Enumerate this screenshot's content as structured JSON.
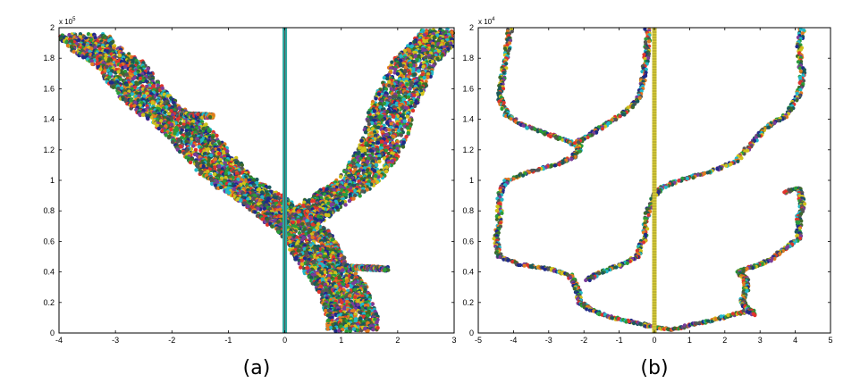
{
  "chart_data": [
    {
      "type": "scatter",
      "caption": "(a)",
      "xlim": [
        -4,
        3
      ],
      "ylim": [
        0,
        2
      ],
      "y_multiplier_label": "x 10",
      "y_multiplier_exp": "5",
      "xticks": [
        "-4",
        "-3",
        "-2",
        "-1",
        "0",
        "1",
        "2",
        "3"
      ],
      "yticks": [
        "0",
        "0.2",
        "0.4",
        "0.6",
        "0.8",
        "1",
        "1.2",
        "1.4",
        "1.6",
        "1.8",
        "2"
      ],
      "grid": false,
      "vertical_line_x": 0,
      "branches": [
        {
          "points": [
            [
              -3.6,
              1.95
            ],
            [
              -3.3,
              1.85
            ],
            [
              -2.9,
              1.75
            ],
            [
              -2.6,
              1.6
            ],
            [
              -2.3,
              1.48
            ],
            [
              -1.9,
              1.38
            ],
            [
              -1.6,
              1.27
            ],
            [
              -1.3,
              1.14
            ],
            [
              -1.0,
              1.02
            ],
            [
              -0.6,
              0.92
            ],
            [
              -0.3,
              0.85
            ],
            [
              0.0,
              0.76
            ],
            [
              0.3,
              0.67
            ],
            [
              0.5,
              0.58
            ],
            [
              0.6,
              0.5
            ],
            [
              0.8,
              0.4
            ],
            [
              1.0,
              0.3
            ],
            [
              1.1,
              0.2
            ],
            [
              1.2,
              0.1
            ],
            [
              1.2,
              0.02
            ]
          ],
          "width": 0.45
        },
        {
          "points": [
            [
              2.8,
              1.98
            ],
            [
              2.6,
              1.88
            ],
            [
              2.3,
              1.78
            ],
            [
              2.1,
              1.62
            ],
            [
              1.9,
              1.48
            ],
            [
              1.8,
              1.3
            ],
            [
              1.6,
              1.15
            ],
            [
              1.3,
              1.0
            ],
            [
              0.9,
              0.9
            ],
            [
              0.5,
              0.8
            ],
            [
              0.2,
              0.72
            ]
          ],
          "width": 0.4
        }
      ],
      "spurs": [
        {
          "points": [
            [
              -1.8,
              1.43
            ],
            [
              -1.3,
              1.42
            ]
          ],
          "width": 0.06
        },
        {
          "points": [
            [
              1.2,
              0.43
            ],
            [
              1.8,
              0.42
            ]
          ],
          "width": 0.06
        }
      ]
    },
    {
      "type": "scatter",
      "caption": "(b)",
      "xlim": [
        -5,
        5
      ],
      "ylim": [
        0,
        2
      ],
      "y_multiplier_label": "x 10",
      "y_multiplier_exp": "4",
      "xticks": [
        "-5",
        "-4",
        "-3",
        "-2",
        "-1",
        "0",
        "1",
        "2",
        "3",
        "4",
        "5"
      ],
      "yticks": [
        "0",
        "0.2",
        "0.4",
        "0.6",
        "0.8",
        "1",
        "1.2",
        "1.4",
        "1.6",
        "1.8",
        "2"
      ],
      "grid": false,
      "vertical_line_x": 0,
      "curves": [
        [
          [
            -4.1,
            2.0
          ],
          [
            -4.2,
            1.82
          ],
          [
            -4.3,
            1.68
          ],
          [
            -4.4,
            1.55
          ],
          [
            -4.2,
            1.43
          ],
          [
            -3.7,
            1.36
          ],
          [
            -3.0,
            1.3
          ],
          [
            -2.5,
            1.26
          ],
          [
            -2.1,
            1.22
          ],
          [
            -2.3,
            1.15
          ],
          [
            -2.8,
            1.1
          ],
          [
            -3.5,
            1.06
          ],
          [
            -4.2,
            1.0
          ],
          [
            -4.4,
            0.9
          ],
          [
            -4.4,
            0.75
          ],
          [
            -4.5,
            0.6
          ],
          [
            -4.4,
            0.5
          ],
          [
            -3.8,
            0.45
          ],
          [
            -3.0,
            0.42
          ],
          [
            -2.4,
            0.38
          ],
          [
            -2.2,
            0.3
          ],
          [
            -2.1,
            0.2
          ],
          [
            -1.8,
            0.15
          ],
          [
            -1.2,
            0.1
          ],
          [
            -0.6,
            0.07
          ],
          [
            0.0,
            0.04
          ],
          [
            0.5,
            0.02
          ],
          [
            1.0,
            0.05
          ],
          [
            1.6,
            0.08
          ],
          [
            2.2,
            0.12
          ],
          [
            2.8,
            0.15
          ]
        ],
        [
          [
            -0.2,
            2.0
          ],
          [
            -0.2,
            1.85
          ],
          [
            -0.3,
            1.7
          ],
          [
            -0.4,
            1.55
          ],
          [
            -0.8,
            1.45
          ],
          [
            -1.3,
            1.38
          ],
          [
            -1.8,
            1.3
          ],
          [
            -2.2,
            1.25
          ]
        ],
        [
          [
            4.2,
            2.0
          ],
          [
            4.1,
            1.85
          ],
          [
            4.2,
            1.7
          ],
          [
            4.1,
            1.55
          ],
          [
            3.7,
            1.42
          ],
          [
            3.2,
            1.35
          ],
          [
            2.8,
            1.25
          ],
          [
            2.3,
            1.12
          ],
          [
            1.5,
            1.05
          ],
          [
            0.7,
            1.0
          ],
          [
            0.2,
            0.95
          ],
          [
            0.0,
            0.9
          ],
          [
            -0.2,
            0.78
          ],
          [
            -0.3,
            0.62
          ],
          [
            -0.5,
            0.5
          ],
          [
            -0.9,
            0.45
          ],
          [
            -1.5,
            0.4
          ],
          [
            -1.9,
            0.35
          ]
        ],
        [
          [
            3.7,
            0.92
          ],
          [
            4.1,
            0.95
          ],
          [
            4.2,
            0.85
          ],
          [
            4.1,
            0.75
          ],
          [
            4.1,
            0.62
          ],
          [
            3.7,
            0.55
          ],
          [
            3.3,
            0.48
          ],
          [
            3.0,
            0.45
          ],
          [
            2.6,
            0.42
          ],
          [
            2.4,
            0.4
          ]
        ],
        [
          [
            2.4,
            0.4
          ],
          [
            2.6,
            0.35
          ],
          [
            2.6,
            0.28
          ],
          [
            2.5,
            0.2
          ],
          [
            2.7,
            0.15
          ],
          [
            2.8,
            0.12
          ]
        ]
      ]
    }
  ],
  "colors": [
    "#1f2a8a",
    "#e0342c",
    "#2a9d3a",
    "#20b8c8",
    "#7a3c9a",
    "#cfc21a",
    "#555555",
    "#e07a20",
    "#1a5a5a",
    "#3d6a2a"
  ]
}
